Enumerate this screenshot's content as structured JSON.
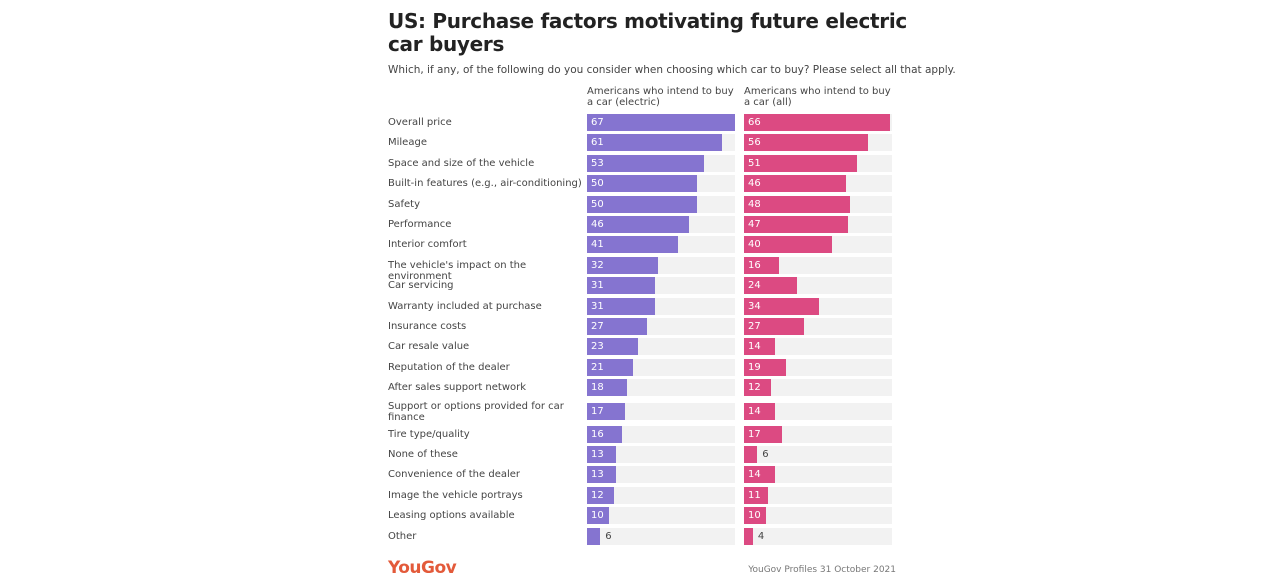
{
  "chart_data": {
    "type": "bar",
    "orientation": "horizontal",
    "title": "US: Purchase factors motivating future electric car buyers",
    "subtitle": "Which, if any, of the following do you consider when choosing which car to buy? Please select all that apply.",
    "categories": [
      "Overall price",
      "Mileage",
      "Space and size of the vehicle",
      "Built-in features (e.g., air-conditioning)",
      "Safety",
      "Performance",
      "Interior comfort",
      "The vehicle's impact on the environment",
      "Car servicing",
      "Warranty included at purchase",
      "Insurance costs",
      "Car resale value",
      "Reputation of the dealer",
      "After sales support network",
      "Support or options provided for car finance",
      "Tire type/quality",
      "None of these",
      "Convenience of the dealer",
      "Image the vehicle portrays",
      "Leasing options available",
      "Other"
    ],
    "series": [
      {
        "name": "Americans who intend to buy a car (electric)",
        "color": "#8574d0",
        "values": [
          67,
          61,
          53,
          50,
          50,
          46,
          41,
          32,
          31,
          31,
          27,
          23,
          21,
          18,
          17,
          16,
          13,
          13,
          12,
          10,
          6
        ]
      },
      {
        "name": "Americans who intend to buy a car (all)",
        "color": "#dc4a82",
        "values": [
          66,
          56,
          51,
          46,
          48,
          47,
          40,
          16,
          24,
          34,
          27,
          14,
          19,
          12,
          14,
          17,
          6,
          14,
          11,
          10,
          4
        ]
      }
    ],
    "xlim": [
      0,
      67
    ],
    "grid": false,
    "legend": "column headers"
  },
  "footer": {
    "logo": "YouGov",
    "source": "YouGov Profiles 31 October 2021"
  }
}
